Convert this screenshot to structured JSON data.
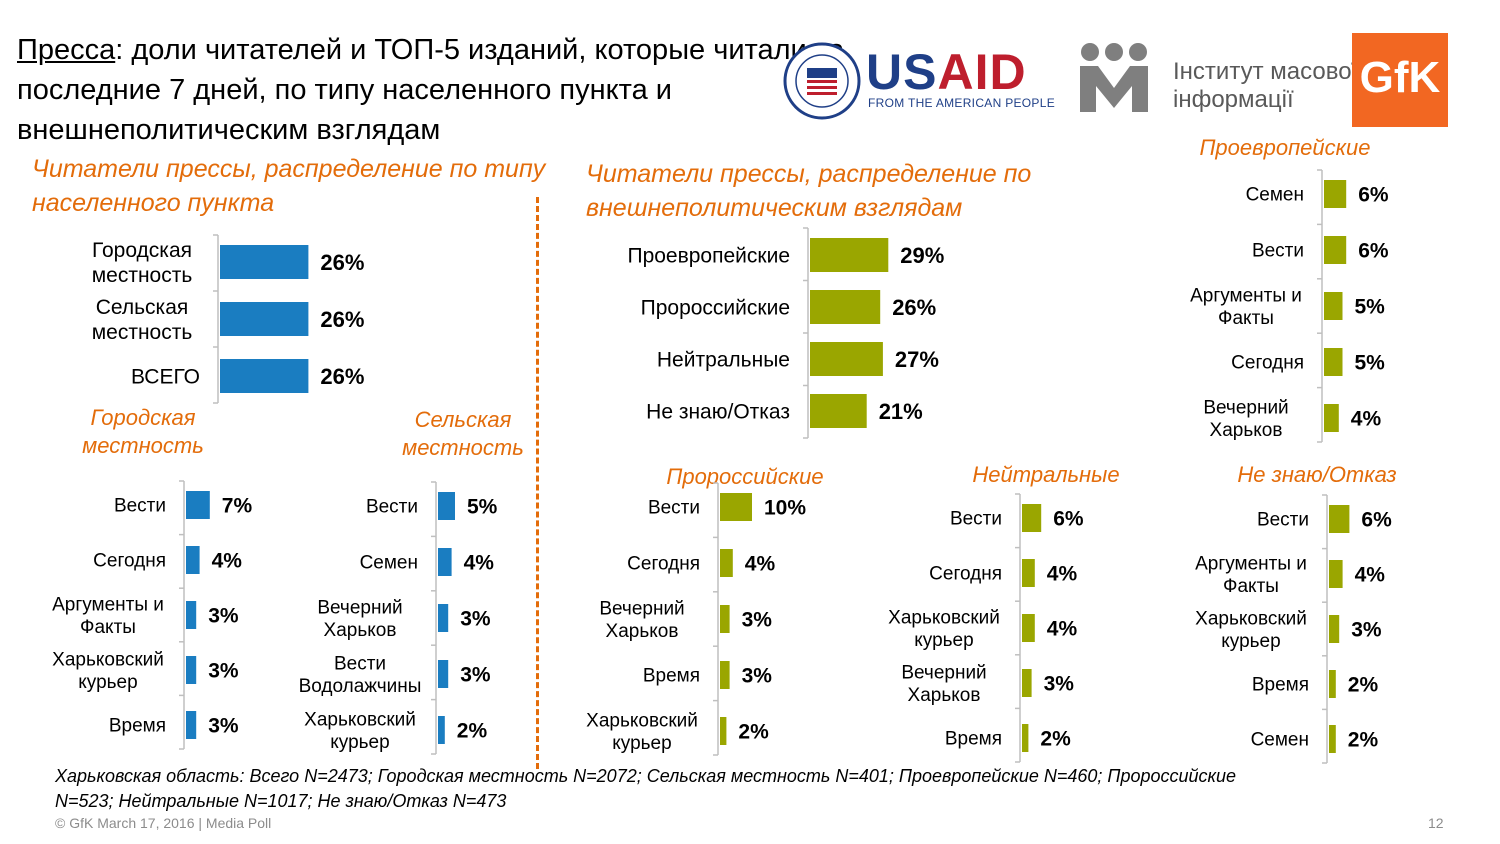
{
  "title": {
    "underlined": "Пресса",
    "rest": ": доли читателей и ТОП-5 изданий, которые читали за последние 7 дней, по типу населенного пункта и внешнеполитическим взглядам"
  },
  "logos": {
    "usaid_word_blue": "US",
    "usaid_word_red": "AID",
    "usaid_tagline": "FROM THE AMERICAN PEOPLE",
    "imi_line1": "Інститут масової",
    "imi_line2": "інформації",
    "gfk": "GfK"
  },
  "sections": {
    "settlement": "Читатели прессы, распределение по типу населенного пункта",
    "views": "Читатели прессы, распределение по внешнеполитическим взглядам"
  },
  "footnote": "Харьковская область: Всего N=2473; Городская местность N=2072; Сельская местность N=401; Проевропейские N=460; Пророссийские N=523; Нейтральные N=1017; Не знаю/Отказ N=473",
  "copyright": "© GfK March 17, 2016 | Media Poll",
  "page_number": "12",
  "colors": {
    "blue": "#1A7DC1",
    "olive": "#9AA600",
    "accent": "#E36C0A"
  },
  "chart_data": [
    {
      "id": "settlement",
      "type": "bar",
      "orientation": "horizontal",
      "color": "#1A7DC1",
      "categories": [
        "Городская\nместность",
        "Сельская\nместность",
        "ВСЕГО"
      ],
      "values": [
        26,
        26,
        26
      ],
      "labels": [
        "26%",
        "26%",
        "26%"
      ],
      "title": ""
    },
    {
      "id": "urban",
      "type": "bar",
      "orientation": "horizontal",
      "color": "#1A7DC1",
      "title": "Городская\nместность",
      "categories": [
        "Вести",
        "Сегодня",
        "Аргументы и\nФакты",
        "Харьковский\nкурьер",
        "Время"
      ],
      "values": [
        7,
        4,
        3,
        3,
        3
      ],
      "labels": [
        "7%",
        "4%",
        "3%",
        "3%",
        "3%"
      ]
    },
    {
      "id": "rural",
      "type": "bar",
      "orientation": "horizontal",
      "color": "#1A7DC1",
      "title": "Сельская\nместность",
      "categories": [
        "Вести",
        "Семен",
        "Вечерний\nХарьков",
        "Вести\nВодолажчины",
        "Харьковский\nкурьер"
      ],
      "values": [
        5,
        4,
        3,
        3,
        2
      ],
      "labels": [
        "5%",
        "4%",
        "3%",
        "3%",
        "2%"
      ]
    },
    {
      "id": "views",
      "type": "bar",
      "orientation": "horizontal",
      "color": "#9AA600",
      "categories": [
        "Проевропейские",
        "Пророссийские",
        "Нейтральные",
        "Не знаю/Отказ"
      ],
      "values": [
        29,
        26,
        27,
        21
      ],
      "labels": [
        "29%",
        "26%",
        "27%",
        "21%"
      ],
      "title": ""
    },
    {
      "id": "proeuropean",
      "type": "bar",
      "orientation": "horizontal",
      "color": "#9AA600",
      "title": "Проевропейские",
      "categories": [
        "Семен",
        "Вести",
        "Аргументы и\nФакты",
        "Сегодня",
        "Вечерний\nХарьков"
      ],
      "values": [
        6,
        6,
        5,
        5,
        4
      ],
      "labels": [
        "6%",
        "6%",
        "5%",
        "5%",
        "4%"
      ]
    },
    {
      "id": "prorussian",
      "type": "bar",
      "orientation": "horizontal",
      "color": "#9AA600",
      "title": "Пророссийские",
      "categories": [
        "Вести",
        "Сегодня",
        "Вечерний\nХарьков",
        "Время",
        "Харьковский\nкурьер"
      ],
      "values": [
        10,
        4,
        3,
        3,
        2
      ],
      "labels": [
        "10%",
        "4%",
        "3%",
        "3%",
        "2%"
      ]
    },
    {
      "id": "neutral",
      "type": "bar",
      "orientation": "horizontal",
      "color": "#9AA600",
      "title": "Нейтральные",
      "categories": [
        "Вести",
        "Сегодня",
        "Харьковский\nкурьер",
        "Вечерний\nХарьков",
        "Время"
      ],
      "values": [
        6,
        4,
        4,
        3,
        2
      ],
      "labels": [
        "6%",
        "4%",
        "4%",
        "3%",
        "2%"
      ]
    },
    {
      "id": "dontknow",
      "type": "bar",
      "orientation": "horizontal",
      "color": "#9AA600",
      "title": "Не знаю/Отказ",
      "categories": [
        "Вести",
        "Аргументы и\nФакты",
        "Харьковский\nкурьер",
        "Время",
        "Семен"
      ],
      "values": [
        6,
        4,
        3,
        2,
        2
      ],
      "labels": [
        "6%",
        "4%",
        "3%",
        "2%",
        "2%"
      ]
    }
  ]
}
